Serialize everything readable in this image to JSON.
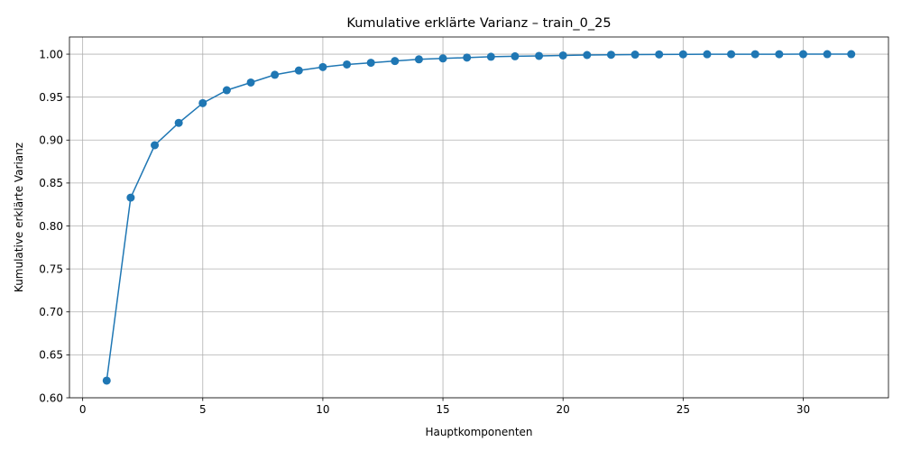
{
  "chart_data": {
    "type": "line",
    "title": "Kumulative erklärte Varianz – train_0_25",
    "xlabel": "Hauptkomponenten",
    "ylabel": "Kumulative erklärte Varianz",
    "xlim": [
      -0.55,
      33.55
    ],
    "ylim": [
      0.6,
      1.02
    ],
    "x_ticks": [
      0,
      5,
      10,
      15,
      20,
      25,
      30
    ],
    "x_tick_labels": [
      "0",
      "5",
      "10",
      "15",
      "20",
      "25",
      "30"
    ],
    "y_ticks": [
      0.6,
      0.65,
      0.7,
      0.75,
      0.8,
      0.85,
      0.9,
      0.95,
      1.0
    ],
    "y_tick_labels": [
      "0.60",
      "0.65",
      "0.70",
      "0.75",
      "0.80",
      "0.85",
      "0.90",
      "0.95",
      "1.00"
    ],
    "grid": true,
    "color": "#1f77b4",
    "marker": "circle",
    "x": [
      1,
      2,
      3,
      4,
      5,
      6,
      7,
      8,
      9,
      10,
      11,
      12,
      13,
      14,
      15,
      16,
      17,
      18,
      19,
      20,
      21,
      22,
      23,
      24,
      25,
      26,
      27,
      28,
      29,
      30,
      31,
      32
    ],
    "values": [
      0.62,
      0.833,
      0.894,
      0.92,
      0.943,
      0.958,
      0.967,
      0.976,
      0.981,
      0.985,
      0.988,
      0.99,
      0.992,
      0.994,
      0.995,
      0.996,
      0.997,
      0.9975,
      0.998,
      0.9985,
      0.999,
      0.9993,
      0.9995,
      0.9997,
      0.9998,
      0.9999,
      0.99993,
      0.99996,
      0.99998,
      0.99999,
      1.0,
      1.0
    ]
  }
}
